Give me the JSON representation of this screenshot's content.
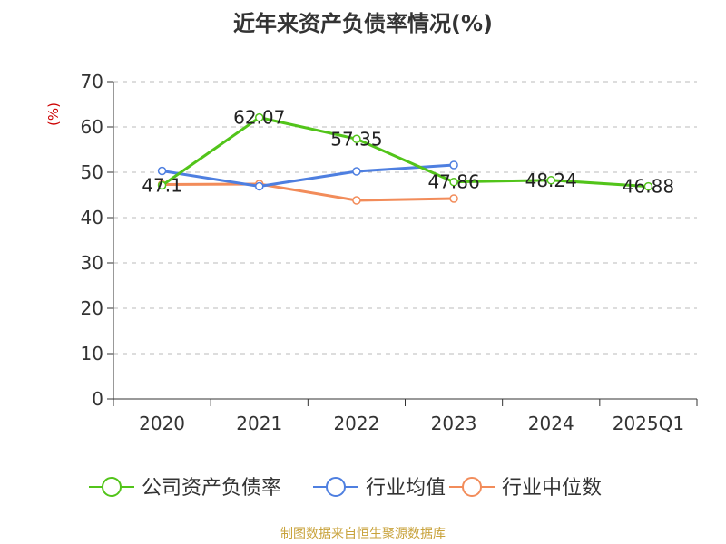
{
  "chart_data": {
    "type": "line",
    "title": "近年来资产负债率情况(%)",
    "ylabel": "(%)",
    "xlabel": "",
    "categories": [
      "2020",
      "2021",
      "2022",
      "2023",
      "2024",
      "2025Q1"
    ],
    "ylim": [
      0,
      70
    ],
    "yticks": [
      0,
      10,
      20,
      30,
      40,
      50,
      60,
      70
    ],
    "grid": true,
    "legend_position": "bottom",
    "series": [
      {
        "name": "公司资产负债率",
        "color": "#52c41a",
        "values": [
          47.1,
          62.07,
          57.35,
          47.86,
          48.24,
          46.88
        ],
        "labels": [
          "47.1",
          "62.07",
          "57.35",
          "47.86",
          "48.24",
          "46.88"
        ]
      },
      {
        "name": "行业均值",
        "color": "#4e7fe0",
        "values": [
          50.3,
          46.9,
          50.2,
          51.6,
          null,
          null
        ]
      },
      {
        "name": "行业中位数",
        "color": "#f28c5a",
        "values": [
          47.3,
          47.4,
          43.8,
          44.2,
          null,
          null
        ]
      }
    ]
  },
  "colors": {
    "ylabel": "#cc0000",
    "source": "#c8a23a",
    "title": "#333333"
  },
  "footer": {
    "source": "制图数据来自恒生聚源数据库"
  }
}
